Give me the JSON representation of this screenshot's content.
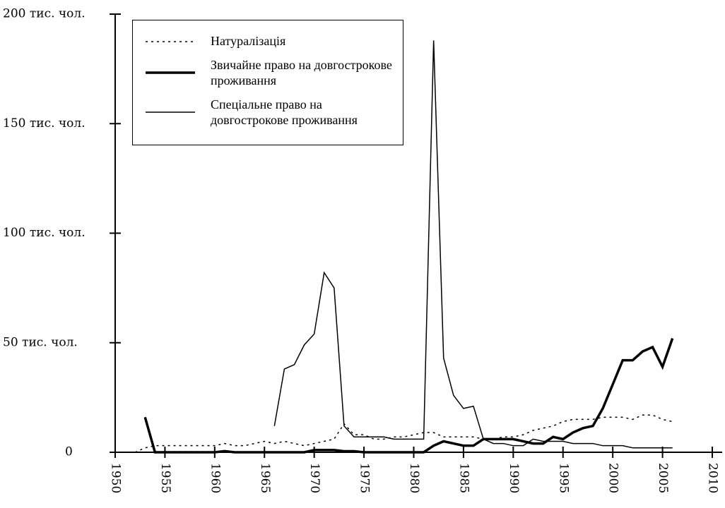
{
  "chart_data": {
    "type": "line",
    "x": [
      1952,
      1953,
      1954,
      1955,
      1956,
      1957,
      1958,
      1959,
      1960,
      1961,
      1962,
      1963,
      1964,
      1965,
      1966,
      1967,
      1968,
      1969,
      1970,
      1971,
      1972,
      1973,
      1974,
      1975,
      1976,
      1977,
      1978,
      1979,
      1980,
      1981,
      1982,
      1983,
      1984,
      1985,
      1986,
      1987,
      1988,
      1989,
      1990,
      1991,
      1992,
      1993,
      1994,
      1995,
      1996,
      1997,
      1998,
      1999,
      2000,
      2001,
      2002,
      2003,
      2004,
      2005,
      2006
    ],
    "series": [
      {
        "name": "Натуралізація",
        "color": "#000",
        "style": "dotted",
        "width": 1.5,
        "values": [
          0,
          2,
          3,
          3,
          3,
          3,
          3,
          3,
          3,
          4,
          3,
          3,
          4,
          5,
          4,
          5,
          4,
          3,
          4,
          5,
          6,
          13,
          8,
          8,
          6,
          6,
          7,
          7,
          8,
          9,
          9,
          7,
          7,
          7,
          7,
          6,
          6,
          7,
          7,
          8,
          10,
          11,
          12,
          14,
          15,
          15,
          15,
          16,
          16,
          16,
          15,
          17,
          17,
          15,
          14
        ]
      },
      {
        "name": "Звичайне право на довгострокове проживання",
        "color": "#000",
        "style": "solid",
        "width": 3.5,
        "values": [
          null,
          16,
          0,
          0,
          0,
          0,
          0,
          0,
          0,
          0.5,
          0,
          0,
          0,
          0,
          0,
          0,
          0,
          0,
          1,
          1,
          1,
          0.5,
          0.5,
          0,
          0,
          0,
          0,
          0,
          0,
          0,
          3,
          5,
          4,
          3,
          3,
          6,
          6,
          6,
          6,
          5,
          4,
          4,
          7,
          6,
          9,
          11,
          12,
          20,
          31,
          42,
          42,
          46,
          48,
          39,
          52
        ]
      },
      {
        "name": "Спеціальне право на довгострокове проживання",
        "color": "#000",
        "style": "solid",
        "width": 1.5,
        "values": [
          null,
          null,
          null,
          null,
          null,
          null,
          null,
          null,
          null,
          null,
          null,
          null,
          null,
          null,
          12,
          38,
          40,
          49,
          54,
          82,
          75,
          12,
          7,
          7,
          7,
          7,
          6,
          6,
          6,
          6,
          188,
          43,
          26,
          20,
          21,
          6,
          4,
          4,
          3,
          3,
          6,
          5,
          5,
          5,
          4,
          4,
          4,
          3,
          3,
          3,
          2,
          2,
          2,
          2,
          2
        ]
      }
    ],
    "xlim": [
      1950,
      2010
    ],
    "xticks": [
      1950,
      1955,
      1960,
      1965,
      1970,
      1975,
      1980,
      1985,
      1990,
      1995,
      2000,
      2005,
      2010
    ],
    "ylim": [
      0,
      200
    ],
    "yticks": [
      0,
      {
        "value": 50,
        "label": "50 тис. чол."
      },
      {
        "value": 100,
        "label": "100 тис. чол."
      },
      {
        "value": 150,
        "label": "150 тис. чол."
      },
      {
        "value": 200,
        "label": "200 тис. чол."
      }
    ],
    "legend": "upper left"
  }
}
